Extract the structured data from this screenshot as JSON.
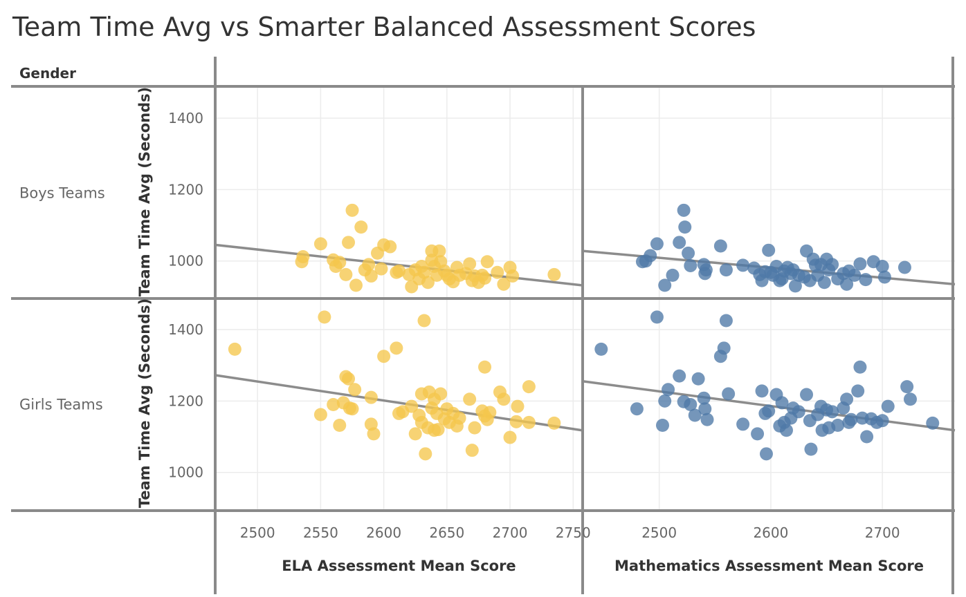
{
  "title": "Team Time Avg vs Smarter Balanced Assessment Scores",
  "row_header": "Gender",
  "rows": [
    "Boys Teams",
    "Girls Teams"
  ],
  "y_axis_label": "Team Time Avg (Seconds)",
  "columns": [
    {
      "xlabel": "ELA Assessment Mean Score",
      "color": "#f5c74d",
      "xlim": [
        2467,
        2757
      ],
      "ticks": [
        2500,
        2550,
        2600,
        2650,
        2700,
        2750
      ]
    },
    {
      "xlabel": "Mathematics Assessment Mean Score",
      "color": "#4e79a7",
      "xlim": [
        2432,
        2765
      ],
      "ticks": [
        2500,
        2600,
        2700
      ]
    }
  ],
  "y_ticks": [
    1000,
    1200,
    1400
  ],
  "ylim": [
    895,
    1485
  ],
  "chart_data": [
    {
      "type": "scatter",
      "row": "Boys Teams",
      "xlabel": "ELA Assessment Mean Score",
      "ylabel": "Team Time Avg (Seconds)",
      "trend": {
        "x": [
          2467,
          2757
        ],
        "y": [
          1045,
          932
        ]
      },
      "x": [
        2535,
        2536,
        2550,
        2560,
        2562,
        2565,
        2570,
        2572,
        2575,
        2578,
        2582,
        2585,
        2588,
        2590,
        2595,
        2598,
        2600,
        2605,
        2610,
        2612,
        2620,
        2622,
        2625,
        2628,
        2630,
        2632,
        2635,
        2638,
        2638,
        2640,
        2642,
        2644,
        2645,
        2648,
        2650,
        2652,
        2655,
        2658,
        2660,
        2665,
        2668,
        2670,
        2672,
        2675,
        2678,
        2680,
        2682,
        2690,
        2695,
        2700,
        2702,
        2735
      ],
      "y": [
        998,
        1012,
        1048,
        1003,
        985,
        996,
        962,
        1052,
        1142,
        932,
        1095,
        975,
        990,
        958,
        1022,
        978,
        1045,
        1040,
        968,
        972,
        962,
        928,
        975,
        950,
        985,
        968,
        940,
        1028,
        1002,
        985,
        960,
        1028,
        998,
        972,
        960,
        950,
        942,
        982,
        960,
        965,
        992,
        945,
        958,
        940,
        960,
        952,
        998,
        968,
        935,
        982,
        958,
        962
      ]
    },
    {
      "type": "scatter",
      "row": "Boys Teams",
      "xlabel": "Mathematics Assessment Mean Score",
      "ylabel": "Team Time Avg (Seconds)",
      "trend": {
        "x": [
          2432,
          2765
        ],
        "y": [
          1028,
          935
        ]
      },
      "x": [
        2485,
        2488,
        2492,
        2498,
        2505,
        2512,
        2518,
        2522,
        2523,
        2526,
        2528,
        2540,
        2541,
        2542,
        2555,
        2560,
        2575,
        2585,
        2590,
        2592,
        2595,
        2598,
        2600,
        2602,
        2605,
        2608,
        2610,
        2612,
        2615,
        2618,
        2620,
        2622,
        2625,
        2630,
        2632,
        2635,
        2638,
        2640,
        2642,
        2645,
        2648,
        2650,
        2652,
        2655,
        2660,
        2665,
        2668,
        2670,
        2675,
        2680,
        2685,
        2692,
        2700,
        2702,
        2720
      ],
      "y": [
        998,
        1000,
        1015,
        1048,
        932,
        960,
        1052,
        1142,
        1095,
        1022,
        987,
        990,
        965,
        975,
        1042,
        975,
        988,
        980,
        962,
        945,
        970,
        1030,
        968,
        960,
        985,
        945,
        950,
        972,
        982,
        965,
        975,
        930,
        960,
        955,
        1028,
        945,
        1005,
        988,
        960,
        990,
        940,
        1005,
        975,
        990,
        950,
        965,
        935,
        972,
        960,
        992,
        948,
        998,
        985,
        955,
        982
      ]
    },
    {
      "type": "scatter",
      "row": "Girls Teams",
      "xlabel": "ELA Assessment Mean Score",
      "ylabel": "Team Time Avg (Seconds)",
      "trend": {
        "x": [
          2467,
          2757
        ],
        "y": [
          1272,
          1118
        ]
      },
      "x": [
        2482,
        2550,
        2553,
        2560,
        2565,
        2568,
        2570,
        2572,
        2573,
        2575,
        2577,
        2590,
        2590,
        2592,
        2600,
        2610,
        2612,
        2615,
        2622,
        2625,
        2628,
        2630,
        2630,
        2632,
        2633,
        2635,
        2636,
        2638,
        2640,
        2640,
        2642,
        2643,
        2645,
        2648,
        2650,
        2652,
        2655,
        2658,
        2660,
        2668,
        2670,
        2672,
        2678,
        2680,
        2680,
        2682,
        2684,
        2692,
        2695,
        2700,
        2705,
        2706,
        2715,
        2715,
        2735
      ],
      "y": [
        1345,
        1162,
        1435,
        1190,
        1132,
        1195,
        1268,
        1262,
        1180,
        1178,
        1232,
        1135,
        1210,
        1108,
        1325,
        1348,
        1165,
        1170,
        1185,
        1108,
        1160,
        1220,
        1140,
        1425,
        1052,
        1125,
        1225,
        1180,
        1118,
        1205,
        1165,
        1120,
        1220,
        1150,
        1178,
        1140,
        1165,
        1130,
        1152,
        1205,
        1062,
        1125,
        1172,
        1158,
        1295,
        1148,
        1168,
        1225,
        1205,
        1098,
        1142,
        1185,
        1240,
        1140,
        1138
      ]
    },
    {
      "type": "scatter",
      "row": "Girls Teams",
      "xlabel": "Mathematics Assessment Mean Score",
      "ylabel": "Team Time Avg (Seconds)",
      "trend": {
        "x": [
          2432,
          2765
        ],
        "y": [
          1255,
          1118
        ]
      },
      "x": [
        2448,
        2480,
        2498,
        2503,
        2505,
        2508,
        2518,
        2522,
        2528,
        2532,
        2535,
        2540,
        2541,
        2543,
        2555,
        2558,
        2560,
        2562,
        2575,
        2588,
        2592,
        2595,
        2596,
        2598,
        2605,
        2608,
        2610,
        2612,
        2614,
        2618,
        2620,
        2625,
        2632,
        2635,
        2636,
        2642,
        2645,
        2646,
        2650,
        2652,
        2655,
        2660,
        2665,
        2668,
        2670,
        2672,
        2678,
        2680,
        2682,
        2686,
        2690,
        2695,
        2700,
        2705,
        2722,
        2725,
        2745
      ],
      "y": [
        1345,
        1178,
        1435,
        1132,
        1200,
        1232,
        1270,
        1198,
        1190,
        1160,
        1262,
        1208,
        1178,
        1148,
        1325,
        1348,
        1425,
        1220,
        1135,
        1108,
        1228,
        1165,
        1052,
        1172,
        1218,
        1130,
        1195,
        1140,
        1118,
        1152,
        1180,
        1170,
        1218,
        1145,
        1065,
        1162,
        1185,
        1118,
        1175,
        1125,
        1170,
        1132,
        1180,
        1205,
        1140,
        1148,
        1228,
        1295,
        1152,
        1100,
        1150,
        1140,
        1145,
        1185,
        1240,
        1205,
        1138
      ]
    }
  ]
}
